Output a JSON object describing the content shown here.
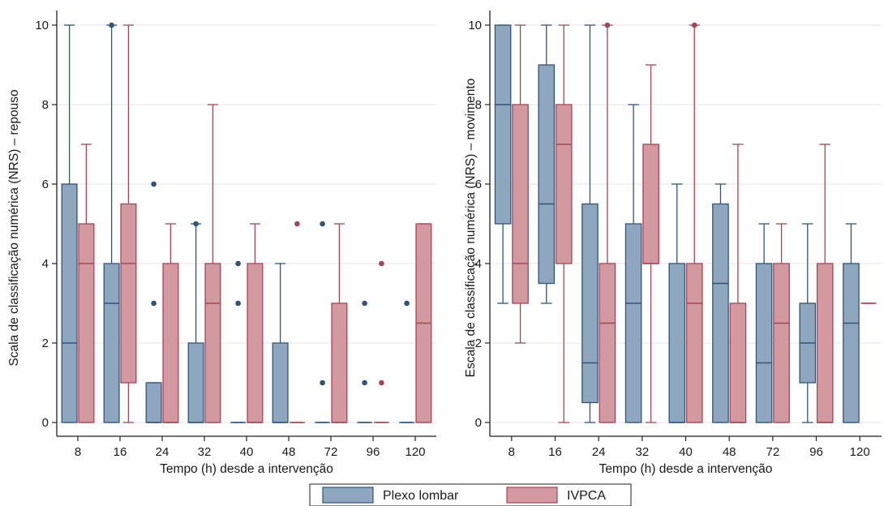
{
  "colors": {
    "plexo_fill": "#8fa6bf",
    "plexo_stroke": "#2f557d",
    "ivpca_fill": "#d29aa0",
    "ivpca_stroke": "#a44652",
    "grid": "#e4e4e4"
  },
  "legend": {
    "items": [
      {
        "label": "Plexo lombar",
        "color_key": "plexo"
      },
      {
        "label": "IVPCA",
        "color_key": "ivpca"
      }
    ],
    "placement": "bottom-center"
  },
  "chart_data": [
    {
      "type": "boxplot",
      "xlabel": "Tempo (h) desde a intervenção",
      "ylabel": "Scala de classificação numérica (NRS) – repouso",
      "categories": [
        "8",
        "16",
        "24",
        "32",
        "40",
        "48",
        "72",
        "96",
        "120"
      ],
      "ylim": [
        0,
        10
      ],
      "yticks": [
        0,
        2,
        4,
        6,
        8,
        10
      ],
      "grid": true,
      "series": [
        {
          "name": "Plexo lombar",
          "boxes": [
            {
              "min": 0,
              "q1": 0,
              "median": 2,
              "q3": 6,
              "max": 10,
              "outliers": []
            },
            {
              "min": 0,
              "q1": 0,
              "median": 3,
              "q3": 4,
              "max": 10,
              "outliers": [
                10
              ]
            },
            {
              "min": 0,
              "q1": 0,
              "median": 0,
              "q3": 1,
              "max": 1,
              "outliers": [
                3,
                6
              ]
            },
            {
              "min": 0,
              "q1": 0,
              "median": 0,
              "q3": 2,
              "max": 5,
              "outliers": [
                5
              ]
            },
            {
              "min": 0,
              "q1": 0,
              "median": 0,
              "q3": 0,
              "max": 0,
              "outliers": [
                3,
                4
              ]
            },
            {
              "min": 0,
              "q1": 0,
              "median": 0,
              "q3": 2,
              "max": 4,
              "outliers": []
            },
            {
              "min": 0,
              "q1": 0,
              "median": 0,
              "q3": 0,
              "max": 0,
              "outliers": [
                1,
                5
              ]
            },
            {
              "min": 0,
              "q1": 0,
              "median": 0,
              "q3": 0,
              "max": 0,
              "outliers": [
                1,
                3
              ]
            },
            {
              "min": 0,
              "q1": 0,
              "median": 0,
              "q3": 0,
              "max": 0,
              "outliers": [
                3
              ]
            }
          ]
        },
        {
          "name": "IVPCA",
          "boxes": [
            {
              "min": 0,
              "q1": 0,
              "median": 4,
              "q3": 5,
              "max": 7,
              "outliers": []
            },
            {
              "min": 0,
              "q1": 1,
              "median": 4,
              "q3": 5.5,
              "max": 10,
              "outliers": []
            },
            {
              "min": 0,
              "q1": 0,
              "median": 0,
              "q3": 4,
              "max": 5,
              "outliers": []
            },
            {
              "min": 0,
              "q1": 0,
              "median": 3,
              "q3": 4,
              "max": 8,
              "outliers": []
            },
            {
              "min": 0,
              "q1": 0,
              "median": 0,
              "q3": 4,
              "max": 5,
              "outliers": []
            },
            {
              "min": 0,
              "q1": 0,
              "median": 0,
              "q3": 0,
              "max": 0,
              "outliers": [
                5
              ]
            },
            {
              "min": 0,
              "q1": 0,
              "median": 0,
              "q3": 3,
              "max": 5,
              "outliers": []
            },
            {
              "min": 0,
              "q1": 0,
              "median": 0,
              "q3": 0,
              "max": 0,
              "outliers": [
                1,
                4
              ]
            },
            {
              "min": 0,
              "q1": 0,
              "median": 2.5,
              "q3": 5,
              "max": 5,
              "outliers": []
            }
          ]
        }
      ]
    },
    {
      "type": "boxplot",
      "xlabel": "Tempo (h) desde a intervenção",
      "ylabel": "Escala de classificação numérica (NRS) – movimento",
      "categories": [
        "8",
        "16",
        "24",
        "32",
        "40",
        "48",
        "72",
        "96",
        "120"
      ],
      "ylim": [
        0,
        10
      ],
      "yticks": [
        0,
        2,
        4,
        6,
        8,
        10
      ],
      "grid": true,
      "series": [
        {
          "name": "Plexo lombar",
          "boxes": [
            {
              "min": 3,
              "q1": 5,
              "median": 8,
              "q3": 10,
              "max": 10,
              "outliers": []
            },
            {
              "min": 3,
              "q1": 3.5,
              "median": 5.5,
              "q3": 9,
              "max": 10,
              "outliers": []
            },
            {
              "min": 0,
              "q1": 0.5,
              "median": 1.5,
              "q3": 5.5,
              "max": 10,
              "outliers": []
            },
            {
              "min": 0,
              "q1": 0,
              "median": 3,
              "q3": 5,
              "max": 8,
              "outliers": []
            },
            {
              "min": 0,
              "q1": 0,
              "median": 0,
              "q3": 4,
              "max": 6,
              "outliers": []
            },
            {
              "min": 0,
              "q1": 0,
              "median": 3.5,
              "q3": 5.5,
              "max": 6,
              "outliers": []
            },
            {
              "min": 0,
              "q1": 0,
              "median": 1.5,
              "q3": 4,
              "max": 5,
              "outliers": []
            },
            {
              "min": 0,
              "q1": 1,
              "median": 2,
              "q3": 3,
              "max": 5,
              "outliers": []
            },
            {
              "min": 0,
              "q1": 0,
              "median": 2.5,
              "q3": 4,
              "max": 5,
              "outliers": []
            }
          ]
        },
        {
          "name": "IVPCA",
          "boxes": [
            {
              "min": 2,
              "q1": 3,
              "median": 4,
              "q3": 8,
              "max": 10,
              "outliers": []
            },
            {
              "min": 0,
              "q1": 4,
              "median": 7,
              "q3": 8,
              "max": 10,
              "outliers": []
            },
            {
              "min": 0,
              "q1": 0,
              "median": 2.5,
              "q3": 4,
              "max": 10,
              "outliers": [
                10
              ]
            },
            {
              "min": 0,
              "q1": 4,
              "median": 4,
              "q3": 7,
              "max": 9,
              "outliers": []
            },
            {
              "min": 0,
              "q1": 0,
              "median": 3,
              "q3": 4,
              "max": 10,
              "outliers": [
                10
              ]
            },
            {
              "min": 0,
              "q1": 0,
              "median": 0,
              "q3": 3,
              "max": 7,
              "outliers": []
            },
            {
              "min": 0,
              "q1": 0,
              "median": 2.5,
              "q3": 4,
              "max": 5,
              "outliers": []
            },
            {
              "min": 0,
              "q1": 0,
              "median": 0,
              "q3": 4,
              "max": 7,
              "outliers": []
            },
            {
              "min": 3,
              "q1": 3,
              "median": 3,
              "q3": 3,
              "max": 3,
              "outliers": []
            }
          ]
        }
      ]
    }
  ]
}
